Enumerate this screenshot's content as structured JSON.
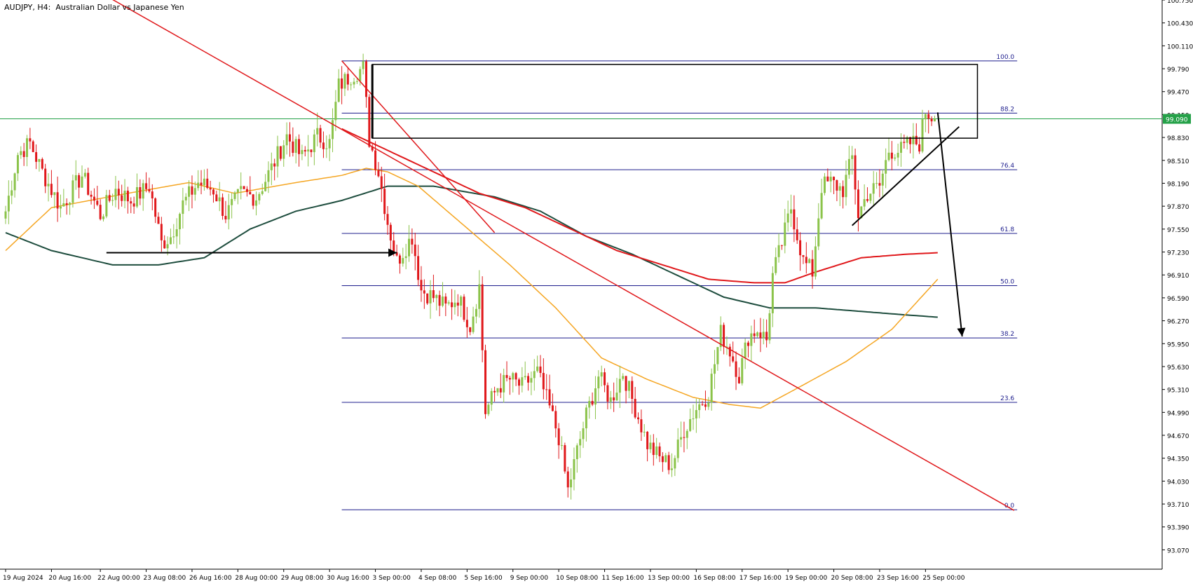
{
  "chart_title": "AUDJPY, H4:  Australian Dollar vs Japanese Yen",
  "colors": {
    "background": "#ffffff",
    "axis": "#000000",
    "bull": "#8bc34a",
    "bear": "#e0181b",
    "ma_fast": "#f5a623",
    "ma_mid": "#e0181b",
    "ma_slow": "#1e4d3e",
    "fib": "#1c1c8c",
    "current_price": "#24a148",
    "trendline": "#e0181b",
    "annotation": "#000000"
  },
  "chart_data": {
    "type": "candlestick",
    "symbol": "AUDJPY",
    "timeframe": "H4",
    "ylim": [
      92.8,
      100.75
    ],
    "y_ticks": [
      "100.750",
      "100.430",
      "100.110",
      "99.790",
      "99.470",
      "99.150",
      "98.830",
      "98.510",
      "98.190",
      "97.870",
      "97.550",
      "97.230",
      "96.910",
      "96.590",
      "96.270",
      "95.950",
      "95.630",
      "95.310",
      "94.990",
      "94.670",
      "94.350",
      "94.030",
      "93.710",
      "93.390",
      "93.070"
    ],
    "x_ticks": [
      {
        "i": 0,
        "label": "19 Aug 2024"
      },
      {
        "i": 15,
        "label": "20 Aug 16:00"
      },
      {
        "i": 31,
        "label": "22 Aug 00:00"
      },
      {
        "i": 46,
        "label": "23 Aug 08:00"
      },
      {
        "i": 61,
        "label": "26 Aug 16:00"
      },
      {
        "i": 76,
        "label": "28 Aug 00:00"
      },
      {
        "i": 91,
        "label": "29 Aug 08:00"
      },
      {
        "i": 106,
        "label": "30 Aug 16:00"
      },
      {
        "i": 121,
        "label": "3 Sep 00:00"
      },
      {
        "i": 136,
        "label": "4 Sep 08:00"
      },
      {
        "i": 151,
        "label": "5 Sep 16:00"
      },
      {
        "i": 166,
        "label": "9 Sep 00:00"
      },
      {
        "i": 181,
        "label": "10 Sep 08:00"
      },
      {
        "i": 196,
        "label": "11 Sep 16:00"
      },
      {
        "i": 211,
        "label": "13 Sep 00:00"
      },
      {
        "i": 226,
        "label": "16 Sep 08:00"
      },
      {
        "i": 241,
        "label": "17 Sep 16:00"
      },
      {
        "i": 256,
        "label": "19 Sep 00:00"
      },
      {
        "i": 271,
        "label": "20 Sep 08:00"
      },
      {
        "i": 286,
        "label": "23 Sep 16:00"
      },
      {
        "i": 301,
        "label": "25 Sep 00:00"
      }
    ],
    "anchors": [
      [
        0,
        97.8
      ],
      [
        4,
        98.6
      ],
      [
        8,
        98.75
      ],
      [
        12,
        98.35
      ],
      [
        18,
        97.85
      ],
      [
        25,
        98.3
      ],
      [
        31,
        97.75
      ],
      [
        36,
        98.1
      ],
      [
        41,
        97.95
      ],
      [
        47,
        98.15
      ],
      [
        51,
        97.35
      ],
      [
        54,
        97.45
      ],
      [
        58,
        97.9
      ],
      [
        63,
        98.2
      ],
      [
        68,
        98.1
      ],
      [
        72,
        97.75
      ],
      [
        77,
        98.05
      ],
      [
        82,
        98.0
      ],
      [
        87,
        98.4
      ],
      [
        92,
        98.85
      ],
      [
        97,
        98.55
      ],
      [
        102,
        98.85
      ],
      [
        106,
        98.75
      ],
      [
        109,
        99.55
      ],
      [
        113,
        99.7
      ],
      [
        117,
        99.8
      ],
      [
        119,
        98.8
      ],
      [
        122,
        98.35
      ],
      [
        125,
        97.65
      ],
      [
        128,
        97.1
      ],
      [
        133,
        97.45
      ],
      [
        136,
        96.7
      ],
      [
        140,
        96.6
      ],
      [
        144,
        96.45
      ],
      [
        148,
        96.6
      ],
      [
        152,
        96.2
      ],
      [
        155,
        96.75
      ],
      [
        157,
        95.0
      ],
      [
        161,
        95.35
      ],
      [
        165,
        95.45
      ],
      [
        169,
        95.35
      ],
      [
        174,
        95.55
      ],
      [
        178,
        95.05
      ],
      [
        181,
        94.65
      ],
      [
        184,
        93.9
      ],
      [
        187,
        94.45
      ],
      [
        190,
        94.95
      ],
      [
        194,
        95.5
      ],
      [
        198,
        95.15
      ],
      [
        202,
        95.55
      ],
      [
        206,
        95.05
      ],
      [
        210,
        94.55
      ],
      [
        214,
        94.35
      ],
      [
        218,
        94.25
      ],
      [
        222,
        94.75
      ],
      [
        226,
        95.05
      ],
      [
        230,
        95.25
      ],
      [
        234,
        96.1
      ],
      [
        237,
        95.85
      ],
      [
        240,
        95.5
      ],
      [
        243,
        96.05
      ],
      [
        246,
        96.15
      ],
      [
        249,
        96.0
      ],
      [
        251,
        96.9
      ],
      [
        254,
        97.35
      ],
      [
        257,
        97.85
      ],
      [
        261,
        97.1
      ],
      [
        264,
        96.95
      ],
      [
        267,
        98.15
      ],
      [
        270,
        98.2
      ],
      [
        274,
        98.1
      ],
      [
        277,
        98.55
      ],
      [
        279,
        97.75
      ],
      [
        282,
        98.05
      ],
      [
        286,
        98.15
      ],
      [
        289,
        98.65
      ],
      [
        293,
        98.65
      ],
      [
        296,
        98.75
      ],
      [
        299,
        98.75
      ],
      [
        301,
        99.2
      ],
      [
        304,
        99.09
      ]
    ],
    "ma_fast": [
      [
        0,
        97.25
      ],
      [
        15,
        97.85
      ],
      [
        40,
        98.05
      ],
      [
        60,
        98.2
      ],
      [
        75,
        98.05
      ],
      [
        95,
        98.2
      ],
      [
        110,
        98.3
      ],
      [
        118,
        98.4
      ],
      [
        125,
        98.35
      ],
      [
        135,
        98.15
      ],
      [
        150,
        97.6
      ],
      [
        165,
        97.05
      ],
      [
        180,
        96.45
      ],
      [
        195,
        95.75
      ],
      [
        210,
        95.45
      ],
      [
        225,
        95.2
      ],
      [
        237,
        95.1
      ],
      [
        247,
        95.05
      ],
      [
        260,
        95.35
      ],
      [
        275,
        95.7
      ],
      [
        290,
        96.15
      ],
      [
        305,
        96.85
      ]
    ],
    "ma_mid": [
      [
        110,
        98.95
      ],
      [
        125,
        98.65
      ],
      [
        140,
        98.35
      ],
      [
        155,
        98.05
      ],
      [
        170,
        97.85
      ],
      [
        185,
        97.55
      ],
      [
        200,
        97.25
      ],
      [
        215,
        97.05
      ],
      [
        230,
        96.85
      ],
      [
        245,
        96.8
      ],
      [
        255,
        96.8
      ],
      [
        265,
        96.95
      ],
      [
        280,
        97.15
      ],
      [
        295,
        97.2
      ],
      [
        305,
        97.22
      ]
    ],
    "ma_slow": [
      [
        0,
        97.5
      ],
      [
        15,
        97.25
      ],
      [
        35,
        97.05
      ],
      [
        50,
        97.05
      ],
      [
        65,
        97.15
      ],
      [
        80,
        97.55
      ],
      [
        95,
        97.8
      ],
      [
        110,
        97.95
      ],
      [
        125,
        98.15
      ],
      [
        140,
        98.15
      ],
      [
        160,
        98.0
      ],
      [
        175,
        97.8
      ],
      [
        190,
        97.45
      ],
      [
        205,
        97.2
      ],
      [
        220,
        96.9
      ],
      [
        235,
        96.6
      ],
      [
        250,
        96.45
      ],
      [
        265,
        96.45
      ],
      [
        280,
        96.4
      ],
      [
        295,
        96.35
      ],
      [
        305,
        96.32
      ]
    ],
    "fib_levels": [
      {
        "label": "100.0",
        "value": 99.9
      },
      {
        "label": "88.2",
        "value": 99.17
      },
      {
        "label": "76.4",
        "value": 98.38
      },
      {
        "label": "61.8",
        "value": 97.49
      },
      {
        "label": "50.0",
        "value": 96.76
      },
      {
        "label": "38.2",
        "value": 96.03
      },
      {
        "label": "23.6",
        "value": 95.13
      },
      {
        "label": "0.0",
        "value": 93.63
      }
    ],
    "fib_range": {
      "start_i": 110,
      "end_i": 331
    },
    "current_price": "99.090",
    "current_price_value": 99.09,
    "trendline_main": [
      [
        27,
        100.95
      ],
      [
        330,
        93.62
      ]
    ],
    "trendline_second": [
      [
        110,
        99.9
      ],
      [
        160,
        97.5
      ]
    ],
    "supply_zone": {
      "start_i": 120,
      "end_i": 318,
      "top": 99.85,
      "bottom": 98.82
    },
    "zone_left_edge": {
      "i": 120,
      "top": 99.85,
      "bottom": 98.82
    },
    "rising_support": [
      [
        277,
        97.6
      ],
      [
        312,
        98.98
      ]
    ],
    "arrow_right": {
      "from": [
        33,
        97.22
      ],
      "to": [
        128,
        97.22
      ]
    },
    "arrow_down": {
      "from": [
        305,
        99.18
      ],
      "to": [
        313,
        96.05
      ]
    }
  }
}
